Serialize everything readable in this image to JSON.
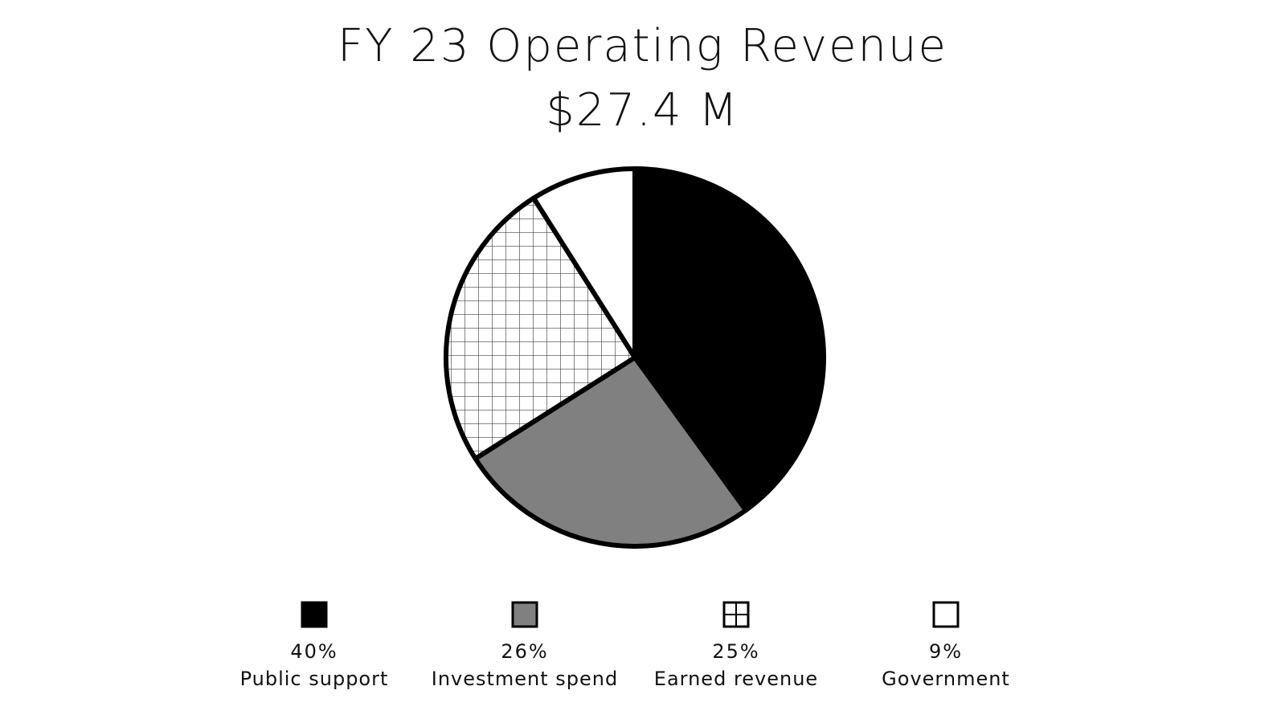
{
  "chart_data": {
    "type": "pie",
    "title": "FY 23 Operating Revenue",
    "subtitle": "$27.4 M",
    "slices": [
      {
        "label": "Public support",
        "value": 40,
        "value_label": "40%",
        "fill": "solid-black",
        "color": "#000000"
      },
      {
        "label": "Investment spend",
        "value": 26,
        "value_label": "26%",
        "fill": "solid-gray",
        "color": "#808080"
      },
      {
        "label": "Earned revenue",
        "value": 25,
        "value_label": "25%",
        "fill": "grid-pattern",
        "color": "#ffffff"
      },
      {
        "label": "Government",
        "value": 9,
        "value_label": "9%",
        "fill": "solid-white",
        "color": "#ffffff"
      }
    ],
    "start_angle": "12 o'clock",
    "direction": "clockwise",
    "legend_position": "bottom",
    "outline_color": "#000000"
  }
}
